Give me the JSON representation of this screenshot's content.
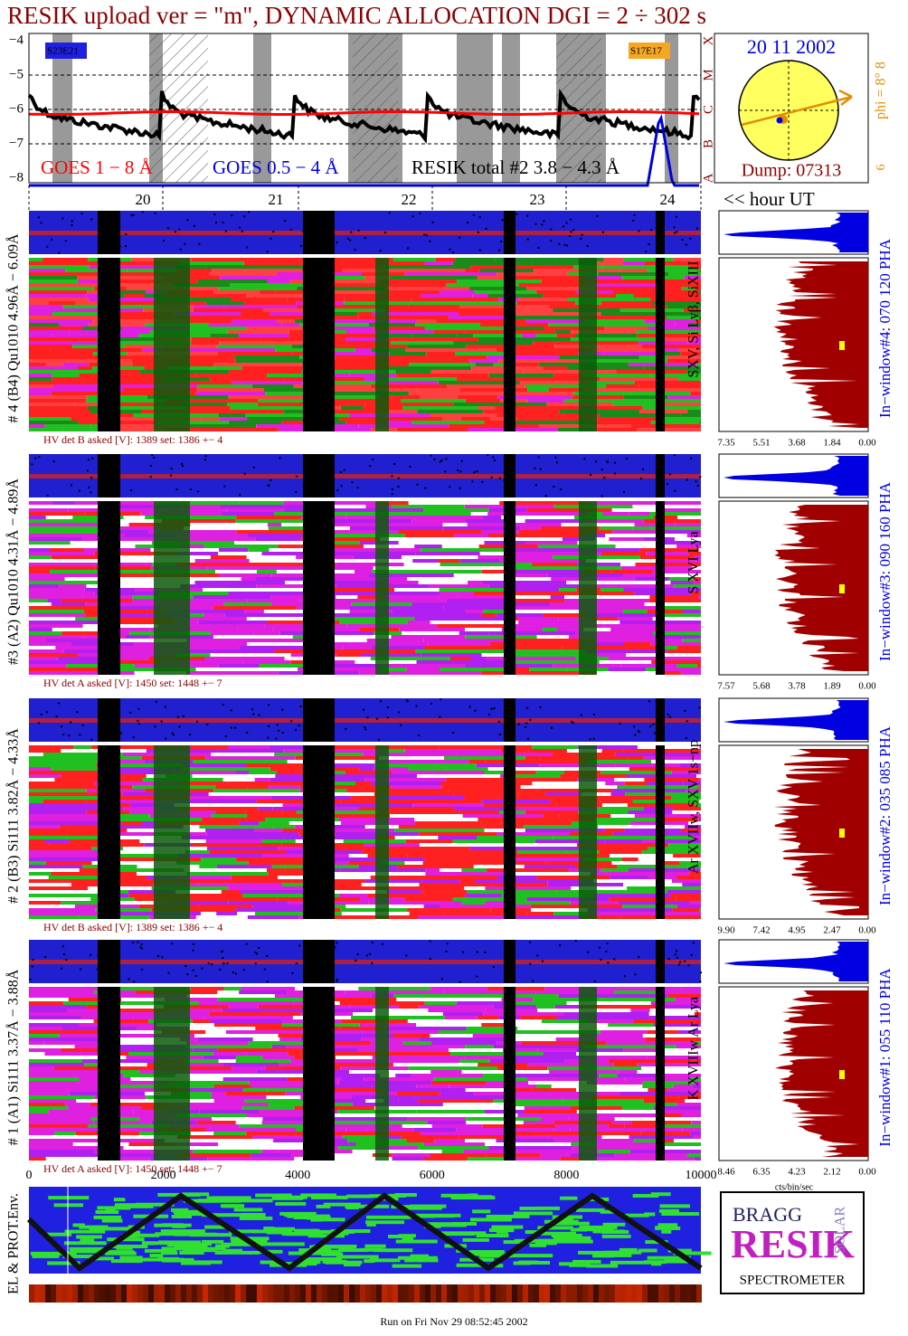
{
  "header": {
    "title": "RESIK upload ver = \"m\", DYNAMIC ALLOCATION  DGI =   2 ÷ 302 s"
  },
  "goes": {
    "yticks": [
      "−4",
      "−5",
      "−6",
      "−7",
      "−8"
    ],
    "class_labels": [
      "X",
      "M",
      "C",
      "B",
      "A"
    ],
    "region_labels": [
      "S23E21",
      "S17E17"
    ],
    "legend": [
      "GOES 1 − 8 Å",
      "GOES 0.5 − 4 Å",
      "RESIK total #2  3.8 − 4.3 Å"
    ],
    "date": "20 11 2002",
    "dump": "Dump: 07313",
    "phi": "phi =  8°  8",
    "phi_small": "6"
  },
  "time_axis": {
    "hours": [
      "20",
      "21",
      "22",
      "23",
      "24"
    ],
    "unit": "<< hour UT"
  },
  "detectors": [
    {
      "label": "# 4 (B4) Qu1010 4.96Å − 6.09Å",
      "lines": "SXV, Si Lyβ, SiXIII",
      "hv": "HV det B asked [V]:  1389 set:  1386 +−   4",
      "window": "In−window#4:  070 120 PHA",
      "scale": [
        "7.35",
        "5.51",
        "3.68",
        "1.84",
        "0.00"
      ]
    },
    {
      "label": "#3 (A2) Qu1010  4.31Å − 4.89Å",
      "lines": "S XVI Lya",
      "hv": "HV det A asked [V]:  1450 set:  1448 +−   7",
      "window": "In−window#3:  090 160 PHA",
      "scale": [
        "7.57",
        "5.68",
        "3.78",
        "1.89",
        "0.00"
      ]
    },
    {
      "label": "# 2 (B3) Si111  3.82Å − 4.33Å",
      "lines": "Ar XVIIw,  SXV  1s−np",
      "hv": "HV det B asked [V]:  1389 set:  1386 +−   4",
      "window": "In−window#2:  035 085 PHA",
      "scale": [
        "9.90",
        "7.42",
        "4.95",
        "2.47",
        "0.00"
      ]
    },
    {
      "label": "# 1 (A1) Si111  3.37Å − 3.88Å",
      "lines": "K XVIIIw  Ar Lya",
      "hv": "HV det A asked [V]:  1450 set:  1448 +−   7",
      "window": "In−window#1:  055 110 PHA",
      "scale": [
        "8.46",
        "6.35",
        "4.23",
        "2.12",
        "0.00"
      ]
    }
  ],
  "x_axis": {
    "ticks": [
      "0",
      "2000",
      "4000",
      "6000",
      "8000",
      "10000"
    ],
    "unit": "cts/bin/sec"
  },
  "environment": {
    "label": "EL & PROT.Env."
  },
  "logo": {
    "top": "BRAGG",
    "middle": "RESIK",
    "right": "SOLAR",
    "bottom": "SPECTROMETER"
  },
  "footer": "Run on Fri Nov 29 08:52:45 2002"
}
